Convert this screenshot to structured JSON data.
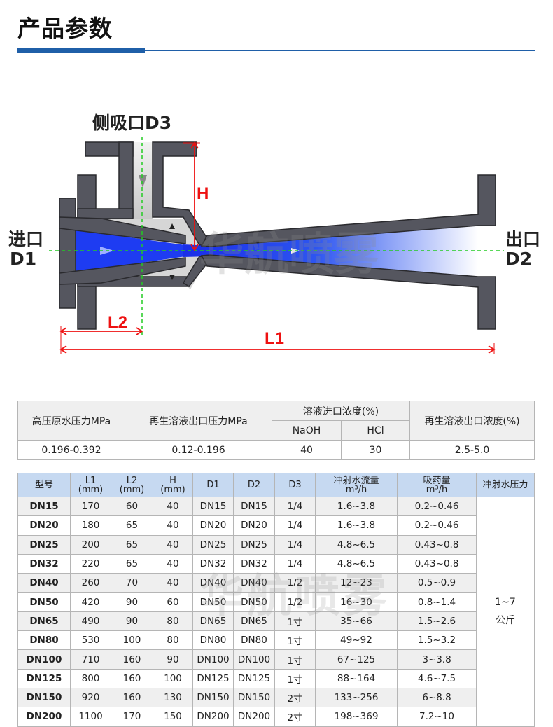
{
  "header": {
    "title": "产品参数",
    "accent_color": "#1f5fa8"
  },
  "diagram": {
    "side_inlet_label": "侧吸口D3",
    "inlet_label": [
      "进口",
      "D1"
    ],
    "outlet_label": [
      "出口",
      "D2"
    ],
    "dim_h": "H",
    "dim_l1": "L1",
    "dim_l2": "L2",
    "watermark": "华航喷雾",
    "colors": {
      "body": "#55565f",
      "fluid": "#1a3cf0",
      "suction": "#d4d4d4",
      "dimension": "#ee1111",
      "centerline": "#22cc22"
    }
  },
  "params_table": {
    "headers": [
      "高压原水压力MPa",
      "再生溶液出口压力MPa",
      "溶液进口浓度(%)",
      "再生溶液出口浓度(%)"
    ],
    "sub_headers": [
      "NaOH",
      "HCl"
    ],
    "row": [
      "0.196-0.392",
      "0.12-0.196",
      "40",
      "30",
      "2.5-5.0"
    ]
  },
  "spec_table": {
    "headers": [
      [
        "型号"
      ],
      [
        "L1",
        "(mm)"
      ],
      [
        "L2",
        "(mm)"
      ],
      [
        "H",
        "(mm)"
      ],
      [
        "D1"
      ],
      [
        "D2"
      ],
      [
        "D3"
      ],
      [
        "冲射水流量",
        "m³/h"
      ],
      [
        "吸药量",
        "m³/h"
      ],
      [
        "冲射水压力"
      ]
    ],
    "rows": [
      [
        "DN15",
        "170",
        "60",
        "40",
        "DN15",
        "DN15",
        "1/4",
        "1.6~3.8",
        "0.2~0.46"
      ],
      [
        "DN20",
        "180",
        "65",
        "40",
        "DN20",
        "DN20",
        "1/4",
        "1.6~3.8",
        "0.2~0.46"
      ],
      [
        "DN25",
        "200",
        "65",
        "40",
        "DN25",
        "DN25",
        "1/4",
        "4.8~6.5",
        "0.43~0.8"
      ],
      [
        "DN32",
        "220",
        "65",
        "40",
        "DN32",
        "DN32",
        "1/4",
        "4.8~6.5",
        "0.43~0.8"
      ],
      [
        "DN40",
        "260",
        "70",
        "40",
        "DN40",
        "DN40",
        "1/2",
        "12~23",
        "0.5~0.9"
      ],
      [
        "DN50",
        "420",
        "90",
        "60",
        "DN50",
        "DN50",
        "1/2",
        "16~30",
        "0.8~1.4"
      ],
      [
        "DN65",
        "490",
        "90",
        "80",
        "DN65",
        "DN65",
        "1寸",
        "35~66",
        "1.5~2.6"
      ],
      [
        "DN80",
        "530",
        "100",
        "80",
        "DN80",
        "DN80",
        "1寸",
        "49~92",
        "1.5~3.2"
      ],
      [
        "DN100",
        "710",
        "160",
        "90",
        "DN100",
        "DN100",
        "1寸",
        "67~125",
        "3~3.8"
      ],
      [
        "DN125",
        "800",
        "160",
        "100",
        "DN125",
        "DN125",
        "1寸",
        "88~164",
        "4.6~7.5"
      ],
      [
        "DN150",
        "920",
        "160",
        "130",
        "DN150",
        "DN150",
        "2寸",
        "133~256",
        "6~8.8"
      ],
      [
        "DN200",
        "1100",
        "170",
        "150",
        "DN200",
        "DN200",
        "2寸",
        "198~369",
        "7.2~10"
      ]
    ],
    "pressure_value": [
      "1~7",
      "公斤"
    ],
    "header_color": "#c6d9f1"
  }
}
